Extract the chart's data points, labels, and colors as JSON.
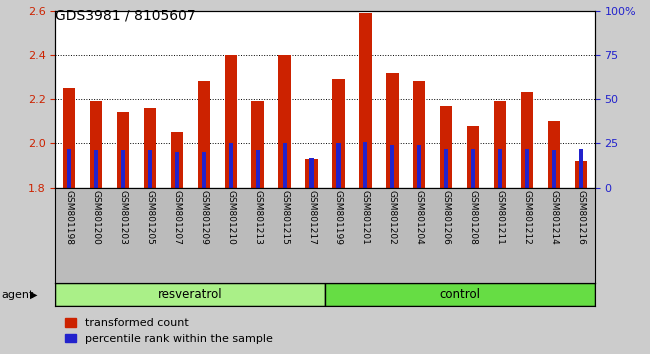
{
  "title": "GDS3981 / 8105607",
  "samples": [
    "GSM801198",
    "GSM801200",
    "GSM801203",
    "GSM801205",
    "GSM801207",
    "GSM801209",
    "GSM801210",
    "GSM801213",
    "GSM801215",
    "GSM801217",
    "GSM801199",
    "GSM801201",
    "GSM801202",
    "GSM801204",
    "GSM801206",
    "GSM801208",
    "GSM801211",
    "GSM801212",
    "GSM801214",
    "GSM801216"
  ],
  "transformed_count": [
    2.25,
    2.19,
    2.14,
    2.16,
    2.05,
    2.28,
    2.4,
    2.19,
    2.4,
    1.93,
    2.29,
    2.59,
    2.32,
    2.28,
    2.17,
    2.08,
    2.19,
    2.23,
    2.1,
    1.92
  ],
  "percentile_rank": [
    22,
    21,
    21,
    21,
    20,
    20,
    25,
    21,
    25,
    17,
    25,
    26,
    24,
    24,
    22,
    22,
    22,
    22,
    21,
    22
  ],
  "resveratrol_count": 10,
  "control_count": 10,
  "ylim_left": [
    1.8,
    2.6
  ],
  "ylim_right": [
    0,
    100
  ],
  "yticks_left": [
    1.8,
    2.0,
    2.2,
    2.4,
    2.6
  ],
  "yticks_right": [
    0,
    25,
    50,
    75,
    100
  ],
  "ytick_labels_right": [
    "0",
    "25",
    "50",
    "75",
    "100%"
  ],
  "bar_bottom": 1.8,
  "bar_color": "#cc2200",
  "percentile_color": "#2222cc",
  "resveratrol_color": "#aaf088",
  "control_color": "#66dd44",
  "agent_label": "agent",
  "resveratrol_label": "resveratrol",
  "control_label": "control",
  "legend_red": "transformed count",
  "legend_blue": "percentile rank within the sample",
  "background_color": "#cccccc",
  "label_bg_color": "#bbbbbb",
  "plot_bg_color": "#ffffff",
  "title_color": "#000000",
  "left_tick_color": "#cc2200",
  "right_tick_color": "#2222cc"
}
